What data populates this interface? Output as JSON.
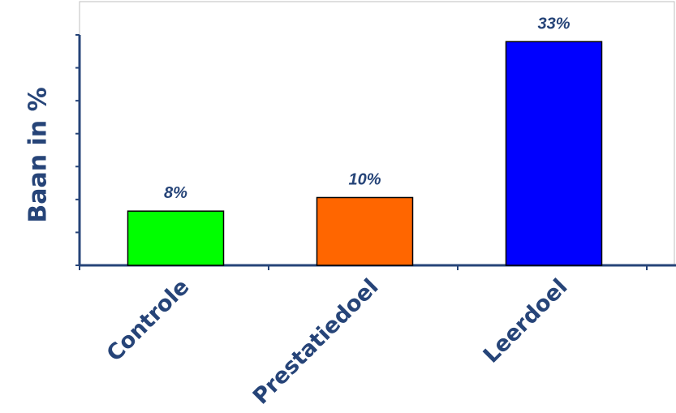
{
  "chart_data": {
    "type": "bar",
    "categories": [
      "Controle",
      "Prestatiedoel",
      "Leerdoel"
    ],
    "values": [
      8,
      10,
      33
    ],
    "data_labels": [
      "8%",
      "10%",
      "33%"
    ],
    "colors": [
      "#00ff00",
      "#ff6600",
      "#0000ff"
    ],
    "title": "",
    "xlabel": "",
    "ylabel": "Baan in %",
    "ylim": [
      0,
      34
    ],
    "grid": false,
    "legend": "none",
    "axis_color": "#264478",
    "text_color": "#264478"
  }
}
